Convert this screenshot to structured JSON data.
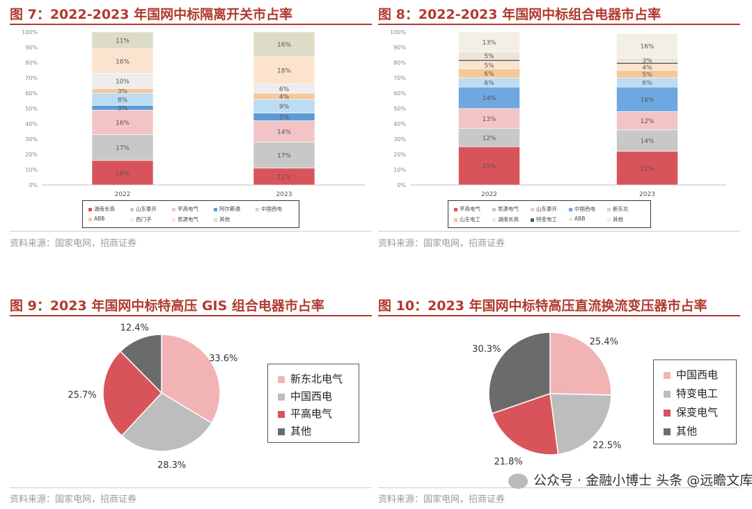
{
  "panels": [
    {
      "title": "图 7：2022-2023 年国网中标隔离开关市占率",
      "source": "资料来源：国家电网，招商证券"
    },
    {
      "title": "图 8：2022-2023 年国网中标组合电器市占率",
      "source": "资料来源：国家电网，招商证券"
    },
    {
      "title": "图 9：2023 年国网中标特高压 GIS 组合电器市占率",
      "source": "资料来源：国家电网，招商证券"
    },
    {
      "title": "图 10：2023 年国网中标特高压直流换流变压器市占率",
      "source": "资料来源：国家电网，招商证券"
    }
  ],
  "watermark": {
    "text": "公众号 · 金融小博士  头条 @远瞻文库"
  },
  "chart_data": [
    {
      "type": "bar",
      "stacked": true,
      "percent": true,
      "categories": [
        "2022",
        "2023"
      ],
      "y_ticks": [
        "0%",
        "10%",
        "20%",
        "30%",
        "40%",
        "50%",
        "60%",
        "70%",
        "80%",
        "90%",
        "100%"
      ],
      "ylim": [
        0,
        100
      ],
      "legend_position": "bottom",
      "series": [
        {
          "name": "湖南长高",
          "values": [
            16,
            11
          ],
          "labels": [
            "16%",
            "11%"
          ],
          "color": "#d9545a"
        },
        {
          "name": "山东泰开",
          "values": [
            17,
            17
          ],
          "labels": [
            "17%",
            "17%"
          ],
          "color": "#c8c8c8"
        },
        {
          "name": "平高电气",
          "values": [
            16,
            14
          ],
          "labels": [
            "16%",
            "14%"
          ],
          "color": "#f2c4c6"
        },
        {
          "name": "阿尔斯通",
          "values": [
            3,
            5
          ],
          "labels": [
            "3%",
            "5%"
          ],
          "color": "#5b9bd5"
        },
        {
          "name": "中国西电",
          "values": [
            8,
            9
          ],
          "labels": [
            "8%",
            "9%"
          ],
          "color": "#bcdcf2"
        },
        {
          "name": "ABB",
          "values": [
            3,
            4
          ],
          "labels": [
            "3%",
            "4%"
          ],
          "color": "#f5c89a"
        },
        {
          "name": "西门子",
          "values": [
            10,
            6
          ],
          "labels": [
            "10%",
            "6%"
          ],
          "color": "#ededed"
        },
        {
          "name": "思源电气",
          "values": [
            16,
            18
          ],
          "labels": [
            "16%",
            "18%"
          ],
          "color": "#fbe3ce"
        },
        {
          "name": "其他",
          "values": [
            11,
            16
          ],
          "labels": [
            "11%",
            "16%"
          ],
          "color": "#dcdcc8"
        }
      ]
    },
    {
      "type": "bar",
      "stacked": true,
      "percent": true,
      "categories": [
        "2022",
        "2023"
      ],
      "y_ticks": [
        "0%",
        "10%",
        "20%",
        "30%",
        "40%",
        "50%",
        "60%",
        "70%",
        "80%",
        "90%",
        "100%"
      ],
      "ylim": [
        0,
        100
      ],
      "legend_position": "bottom",
      "series": [
        {
          "name": "平高电气",
          "values": [
            25,
            22
          ],
          "labels": [
            "25%",
            "22%"
          ],
          "color": "#d9545a"
        },
        {
          "name": "思源电气",
          "values": [
            12,
            14
          ],
          "labels": [
            "12%",
            "14%"
          ],
          "color": "#c8c8c8"
        },
        {
          "name": "山东泰开",
          "values": [
            13,
            12
          ],
          "labels": [
            "13%",
            "12%"
          ],
          "color": "#f2c4c6"
        },
        {
          "name": "中国西电",
          "values": [
            14,
            16
          ],
          "labels": [
            "14%",
            "16%"
          ],
          "color": "#6fa8e0"
        },
        {
          "name": "新东北",
          "values": [
            6,
            6
          ],
          "labels": [
            "6%",
            "6%"
          ],
          "color": "#bcdcf2"
        },
        {
          "name": "山东电工",
          "values": [
            6,
            5
          ],
          "labels": [
            "6%",
            "5%"
          ],
          "color": "#f5c89a"
        },
        {
          "name": "湖南长高",
          "values": [
            5,
            4
          ],
          "labels": [
            "5%",
            "4%"
          ],
          "color": "#fbe3ce"
        },
        {
          "name": "特变电工",
          "values": [
            1,
            1
          ],
          "labels": [
            "",
            ""
          ],
          "color": "#555555"
        },
        {
          "name": "ABB",
          "values": [
            5,
            3
          ],
          "labels": [
            "5%",
            "3%"
          ],
          "color": "#ede6d6"
        },
        {
          "name": "其他",
          "values": [
            13,
            16
          ],
          "labels": [
            "13%",
            "16%"
          ],
          "color": "#f4efe6"
        }
      ]
    },
    {
      "type": "pie",
      "legend_position": "right",
      "slices": [
        {
          "name": "新东北电气",
          "value": 33.6,
          "label": "33.6%",
          "color": "#f2b3b5"
        },
        {
          "name": "中国西电",
          "value": 28.3,
          "label": "28.3%",
          "color": "#bdbdbd"
        },
        {
          "name": "平高电气",
          "value": 25.7,
          "label": "25.7%",
          "color": "#d9545a"
        },
        {
          "name": "其他",
          "value": 12.4,
          "label": "12.4%",
          "color": "#6b6b6b"
        }
      ]
    },
    {
      "type": "pie",
      "legend_position": "right",
      "slices": [
        {
          "name": "中国西电",
          "value": 25.4,
          "label": "25.4%",
          "color": "#f2b3b5"
        },
        {
          "name": "特变电工",
          "value": 22.5,
          "label": "22.5%",
          "color": "#bdbdbd"
        },
        {
          "name": "保变电气",
          "value": 21.8,
          "label": "21.8%",
          "color": "#d9545a"
        },
        {
          "name": "其他",
          "value": 30.3,
          "label": "30.3%",
          "color": "#6b6b6b"
        }
      ]
    }
  ]
}
